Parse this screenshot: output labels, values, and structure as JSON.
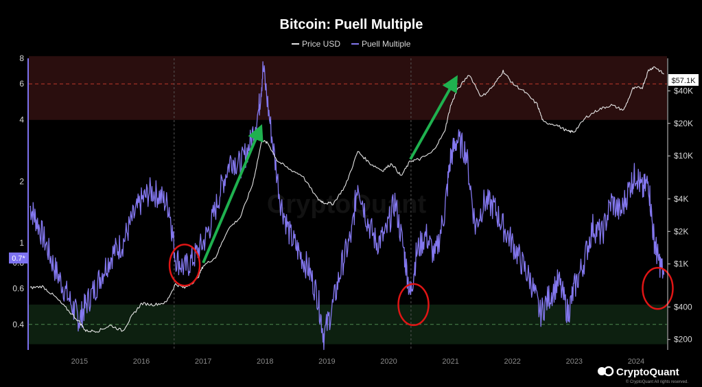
{
  "chart_data": {
    "type": "line",
    "title": "Bitcoin: Puell Multiple",
    "legend": {
      "placement": "top-center",
      "entries": [
        "Price USD",
        "Puell Multiple"
      ]
    },
    "colors": {
      "price": "#e6e6e6",
      "puell": "#8478f0",
      "arrow": "#1fb14f",
      "circle": "#e01515",
      "top_band": "#2a0e0e",
      "bottom_band": "#0d2010",
      "red_dash": "#c0392b",
      "green_dash": "#4f8a4f"
    },
    "x_ticks": [
      "2015",
      "2016",
      "2017",
      "2018",
      "2019",
      "2020",
      "2021",
      "2022",
      "2023",
      "2024"
    ],
    "y_left_ticks": [
      "8",
      "6",
      "4",
      "2",
      "1",
      "0.8",
      "0.6",
      "0.4"
    ],
    "y_left_ticks_values": [
      8,
      6,
      4,
      2,
      1,
      0.8,
      0.6,
      0.4
    ],
    "y_left_range": [
      0.3,
      8
    ],
    "y_left_scale": "log",
    "y_right_ticks": [
      "$40K",
      "$20K",
      "$10K",
      "$4K",
      "$2K",
      "$1K",
      "$400",
      "$200"
    ],
    "y_right_ticks_values": [
      40000,
      20000,
      10000,
      4000,
      2000,
      1000,
      400,
      200
    ],
    "y_right_range": [
      160,
      80000
    ],
    "y_right_scale": "log",
    "current_price_label": "$57.1K",
    "current_puell_label": "0.7*",
    "bands": {
      "overheated": [
        4,
        8.2
      ],
      "undervalued": [
        0.32,
        0.5
      ]
    },
    "reference_lines": {
      "upper": 6,
      "lower": 0.4
    },
    "halving_dates": [
      2016.53,
      2020.36
    ],
    "series": [
      {
        "name": "Price USD",
        "axis": "right",
        "x": [
          2014.2,
          2014.4,
          2014.6,
          2014.8,
          2015.0,
          2015.1,
          2015.3,
          2015.5,
          2015.7,
          2015.85,
          2016.0,
          2016.2,
          2016.4,
          2016.55,
          2016.7,
          2016.9,
          2017.0,
          2017.2,
          2017.4,
          2017.6,
          2017.8,
          2017.95,
          2018.05,
          2018.2,
          2018.4,
          2018.6,
          2018.85,
          2018.95,
          2019.1,
          2019.3,
          2019.5,
          2019.7,
          2019.9,
          2020.05,
          2020.2,
          2020.35,
          2020.5,
          2020.7,
          2020.9,
          2021.0,
          2021.1,
          2021.3,
          2021.5,
          2021.7,
          2021.85,
          2022.0,
          2022.2,
          2022.4,
          2022.5,
          2022.7,
          2022.9,
          2023.0,
          2023.2,
          2023.4,
          2023.6,
          2023.8,
          2023.95,
          2024.1,
          2024.2,
          2024.3,
          2024.45
        ],
        "values": [
          600,
          620,
          500,
          380,
          290,
          240,
          240,
          270,
          240,
          330,
          430,
          420,
          440,
          650,
          600,
          720,
          960,
          1150,
          2100,
          2700,
          5500,
          14000,
          13000,
          9000,
          7500,
          6600,
          4000,
          3700,
          3600,
          5300,
          11000,
          8500,
          7300,
          8500,
          6500,
          9000,
          9300,
          10800,
          16500,
          29000,
          40000,
          57000,
          35000,
          45000,
          61000,
          47000,
          39000,
          30000,
          20500,
          19500,
          16800,
          16800,
          23000,
          27000,
          29500,
          26500,
          42000,
          43000,
          62000,
          67000,
          57100
        ]
      },
      {
        "name": "Puell Multiple",
        "axis": "left",
        "x": [
          2014.2,
          2014.3,
          2014.45,
          2014.6,
          2014.75,
          2014.9,
          2015.0,
          2015.1,
          2015.25,
          2015.4,
          2015.55,
          2015.7,
          2015.85,
          2016.0,
          2016.15,
          2016.3,
          2016.45,
          2016.55,
          2016.7,
          2016.85,
          2017.0,
          2017.15,
          2017.3,
          2017.45,
          2017.6,
          2017.75,
          2017.9,
          2017.97,
          2018.1,
          2018.25,
          2018.4,
          2018.55,
          2018.7,
          2018.85,
          2018.95,
          2019.1,
          2019.25,
          2019.4,
          2019.5,
          2019.65,
          2019.8,
          2019.95,
          2020.1,
          2020.25,
          2020.35,
          2020.45,
          2020.6,
          2020.75,
          2020.9,
          2021.0,
          2021.1,
          2021.25,
          2021.4,
          2021.55,
          2021.7,
          2021.85,
          2022.0,
          2022.15,
          2022.3,
          2022.45,
          2022.6,
          2022.75,
          2022.9,
          2023.0,
          2023.15,
          2023.3,
          2023.45,
          2023.6,
          2023.75,
          2023.9,
          2024.0,
          2024.1,
          2024.2,
          2024.28,
          2024.35,
          2024.45
        ],
        "values": [
          1.5,
          1.3,
          1.0,
          0.75,
          0.6,
          0.48,
          0.42,
          0.5,
          0.6,
          0.75,
          0.9,
          1.0,
          1.3,
          1.6,
          1.8,
          1.7,
          1.5,
          0.85,
          0.75,
          0.85,
          1.0,
          1.3,
          1.9,
          2.6,
          2.4,
          3.0,
          4.5,
          7.2,
          3.5,
          1.6,
          1.1,
          0.9,
          0.75,
          0.55,
          0.35,
          0.5,
          0.8,
          1.1,
          2.0,
          1.3,
          1.0,
          1.1,
          1.6,
          0.9,
          0.55,
          0.9,
          1.1,
          0.85,
          1.4,
          2.6,
          3.2,
          2.8,
          1.2,
          1.6,
          1.5,
          1.2,
          1.0,
          0.8,
          0.65,
          0.45,
          0.55,
          0.65,
          0.45,
          0.6,
          0.8,
          1.2,
          1.1,
          1.6,
          1.4,
          1.9,
          2.2,
          1.8,
          2.0,
          1.1,
          0.85,
          0.7
        ]
      }
    ],
    "annotations": {
      "arrows": [
        {
          "from": [
            2017.0,
            0.8
          ],
          "to": [
            2017.9,
            3.5
          ]
        },
        {
          "from": [
            2020.35,
            9300
          ],
          "to": [
            2021.05,
            48000
          ]
        }
      ],
      "circles": [
        {
          "x": 2016.7,
          "y": 0.78
        },
        {
          "x": 2020.4,
          "y": 0.5
        },
        {
          "x": 2024.35,
          "y": 0.6
        }
      ]
    }
  },
  "watermark": "CryptoQuant",
  "brand": {
    "name": "CryptoQuant",
    "copyright": "© CryptoQuant All rights reserved."
  }
}
